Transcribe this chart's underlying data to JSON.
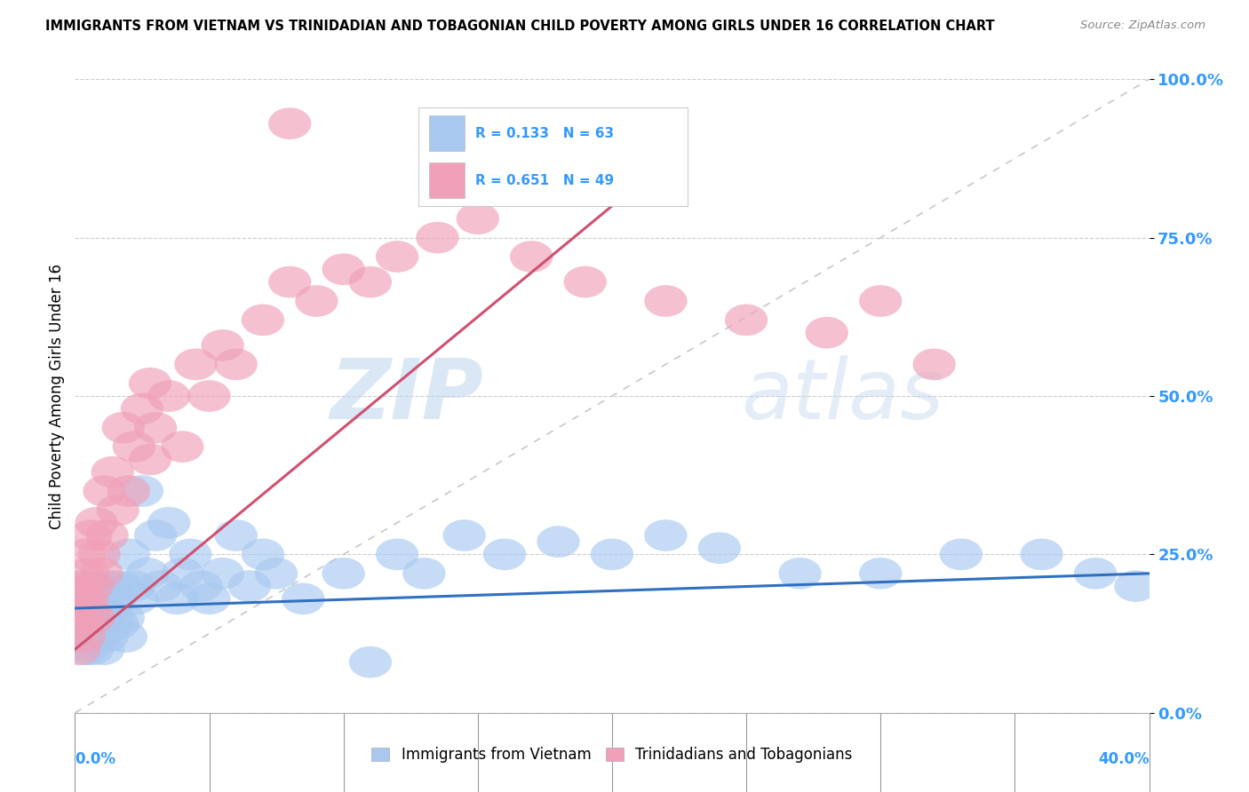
{
  "title": "IMMIGRANTS FROM VIETNAM VS TRINIDADIAN AND TOBAGONIAN CHILD POVERTY AMONG GIRLS UNDER 16 CORRELATION CHART",
  "source": "Source: ZipAtlas.com",
  "ylabel": "Child Poverty Among Girls Under 16",
  "xlim": [
    0.0,
    40.0
  ],
  "ylim": [
    0.0,
    100.0
  ],
  "yticks": [
    0.0,
    25.0,
    50.0,
    75.0,
    100.0
  ],
  "legend_r1": "R = 0.133",
  "legend_n1": "N = 63",
  "legend_r2": "R = 0.651",
  "legend_n2": "N = 49",
  "blue_color": "#A8C8F0",
  "pink_color": "#F0A0B8",
  "blue_line_color": "#3070C0",
  "pink_line_color": "#D05070",
  "ref_line_color": "#C8C8C8",
  "text_color": "#3399FF",
  "background_color": "#FFFFFF",
  "watermark_zip": "ZIP",
  "watermark_atlas": "atlas",
  "blue_x": [
    0.15,
    0.2,
    0.25,
    0.3,
    0.35,
    0.4,
    0.45,
    0.5,
    0.55,
    0.6,
    0.65,
    0.7,
    0.75,
    0.8,
    0.85,
    0.9,
    0.95,
    1.0,
    1.05,
    1.1,
    1.2,
    1.3,
    1.4,
    1.5,
    1.6,
    1.7,
    1.8,
    1.9,
    2.0,
    2.2,
    2.3,
    2.5,
    2.7,
    3.0,
    3.2,
    3.5,
    3.8,
    4.0,
    4.3,
    4.7,
    5.0,
    5.5,
    6.0,
    6.5,
    7.0,
    7.5,
    8.5,
    10.0,
    11.0,
    12.0,
    13.0,
    14.5,
    16.0,
    18.0,
    20.0,
    22.0,
    24.0,
    27.0,
    30.0,
    33.0,
    36.0,
    38.0,
    39.5
  ],
  "blue_y": [
    18.0,
    15.0,
    20.0,
    12.0,
    16.0,
    10.0,
    14.0,
    18.0,
    12.0,
    16.0,
    10.0,
    14.0,
    18.0,
    20.0,
    15.0,
    12.0,
    17.0,
    14.0,
    10.0,
    16.0,
    12.0,
    20.0,
    15.0,
    18.0,
    14.0,
    20.0,
    15.0,
    12.0,
    25.0,
    20.0,
    18.0,
    35.0,
    22.0,
    28.0,
    20.0,
    30.0,
    18.0,
    22.0,
    25.0,
    20.0,
    18.0,
    22.0,
    28.0,
    20.0,
    25.0,
    22.0,
    18.0,
    22.0,
    8.0,
    25.0,
    22.0,
    28.0,
    25.0,
    27.0,
    25.0,
    28.0,
    26.0,
    22.0,
    22.0,
    25.0,
    25.0,
    22.0,
    20.0
  ],
  "pink_x": [
    0.1,
    0.15,
    0.2,
    0.25,
    0.3,
    0.35,
    0.4,
    0.45,
    0.5,
    0.55,
    0.6,
    0.65,
    0.7,
    0.8,
    0.9,
    1.0,
    1.1,
    1.2,
    1.4,
    1.6,
    1.8,
    2.0,
    2.2,
    2.5,
    2.8,
    3.0,
    3.5,
    4.0,
    4.5,
    5.0,
    5.5,
    6.0,
    7.0,
    8.0,
    9.0,
    10.0,
    11.0,
    12.0,
    13.5,
    15.0,
    17.0,
    19.0,
    22.0,
    25.0,
    28.0,
    30.0,
    32.0,
    8.0,
    2.8
  ],
  "pink_y": [
    15.0,
    10.0,
    18.0,
    14.0,
    20.0,
    12.0,
    25.0,
    18.0,
    22.0,
    16.0,
    28.0,
    20.0,
    15.0,
    30.0,
    25.0,
    22.0,
    35.0,
    28.0,
    38.0,
    32.0,
    45.0,
    35.0,
    42.0,
    48.0,
    40.0,
    45.0,
    50.0,
    42.0,
    55.0,
    50.0,
    58.0,
    55.0,
    62.0,
    68.0,
    65.0,
    70.0,
    68.0,
    72.0,
    75.0,
    78.0,
    72.0,
    68.0,
    65.0,
    62.0,
    60.0,
    65.0,
    55.0,
    93.0,
    52.0
  ],
  "blue_trend_x": [
    0.0,
    40.0
  ],
  "blue_trend_y": [
    16.5,
    22.0
  ],
  "pink_trend_x": [
    0.0,
    20.0
  ],
  "pink_trend_y": [
    10.0,
    80.0
  ]
}
